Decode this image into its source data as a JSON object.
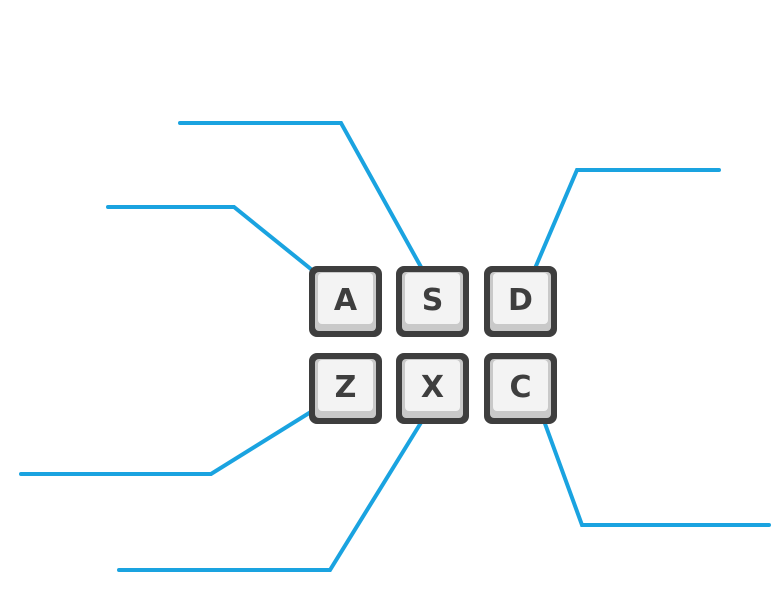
{
  "diagram": {
    "type": "keyboard-key-callout-diagram",
    "colors": {
      "background": "#ffffff",
      "callout_line": "#1aa3e0",
      "key_border": "#3e3e3e",
      "key_face": "#f3f3f3",
      "key_bevel": "#c9c9c9",
      "key_label": "#3e3e3e"
    },
    "keys": [
      {
        "id": "a",
        "label": "A",
        "row": 1,
        "column": 1
      },
      {
        "id": "s",
        "label": "S",
        "row": 1,
        "column": 2
      },
      {
        "id": "d",
        "label": "D",
        "row": 1,
        "column": 3
      },
      {
        "id": "z",
        "label": "Z",
        "row": 2,
        "column": 1
      },
      {
        "id": "x",
        "label": "X",
        "row": 2,
        "column": 2
      },
      {
        "id": "c",
        "label": "C",
        "row": 2,
        "column": 3
      }
    ],
    "callouts": [
      {
        "key": "a",
        "label_text": ""
      },
      {
        "key": "s",
        "label_text": ""
      },
      {
        "key": "d",
        "label_text": ""
      },
      {
        "key": "z",
        "label_text": ""
      },
      {
        "key": "x",
        "label_text": ""
      },
      {
        "key": "c",
        "label_text": ""
      }
    ]
  }
}
